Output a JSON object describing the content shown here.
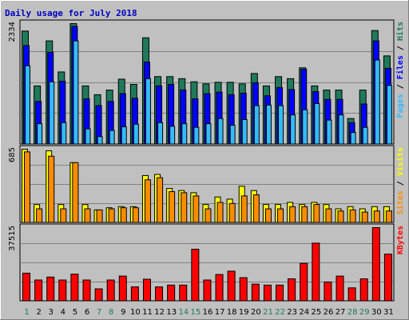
{
  "chart_data": [
    {
      "type": "bar",
      "title": "Daily usage for July 2018",
      "categories": [
        "1",
        "2",
        "3",
        "4",
        "5",
        "6",
        "7",
        "8",
        "9",
        "10",
        "11",
        "12",
        "13",
        "14",
        "15",
        "16",
        "17",
        "18",
        "19",
        "20",
        "21",
        "22",
        "23",
        "24",
        "25",
        "26",
        "27",
        "28",
        "29",
        "30",
        "31"
      ],
      "weekend_days": [
        "1",
        "7",
        "8",
        "14",
        "15",
        "21",
        "22",
        "28",
        "29"
      ],
      "ymax_label": "2334",
      "ylim": [
        0,
        2334
      ],
      "series": [
        {
          "name": "Hits",
          "color": "#1f7a5a",
          "values": [
            2190,
            1130,
            2000,
            1400,
            2334,
            1130,
            960,
            1050,
            1260,
            1160,
            2060,
            1310,
            1310,
            1270,
            1210,
            1170,
            1200,
            1200,
            1170,
            1370,
            1130,
            1310,
            1270,
            1480,
            1130,
            1050,
            1050,
            500,
            1050,
            2200,
            1710
          ]
        },
        {
          "name": "Files",
          "color": "#0000ff",
          "values": [
            1910,
            830,
            1780,
            1220,
            2280,
            880,
            750,
            830,
            980,
            890,
            1590,
            1130,
            1160,
            1050,
            880,
            980,
            1010,
            960,
            990,
            1190,
            940,
            1100,
            1060,
            1450,
            1020,
            870,
            870,
            420,
            780,
            2000,
            1470
          ]
        },
        {
          "name": "Pages",
          "color": "#33bbff",
          "values": [
            1520,
            400,
            1210,
            420,
            2000,
            300,
            150,
            270,
            340,
            390,
            1270,
            420,
            350,
            400,
            330,
            400,
            500,
            370,
            480,
            750,
            760,
            750,
            570,
            670,
            790,
            470,
            570,
            230,
            330,
            1630,
            1140
          ]
        }
      ],
      "side_labels": [
        "Pages",
        "/",
        "Files",
        "/",
        "Hits"
      ]
    },
    {
      "type": "bar",
      "categories": [
        "1",
        "2",
        "3",
        "4",
        "5",
        "6",
        "7",
        "8",
        "9",
        "10",
        "11",
        "12",
        "13",
        "14",
        "15",
        "16",
        "17",
        "18",
        "19",
        "20",
        "21",
        "22",
        "23",
        "24",
        "25",
        "26",
        "27",
        "28",
        "29",
        "30",
        "31"
      ],
      "ymax_label": "685",
      "ylim": [
        0,
        685
      ],
      "series": [
        {
          "name": "Visits",
          "color": "#ffff00",
          "values": [
            685,
            170,
            670,
            170,
            560,
            170,
            120,
            140,
            150,
            150,
            440,
            450,
            320,
            300,
            280,
            170,
            240,
            220,
            340,
            300,
            170,
            170,
            190,
            170,
            190,
            170,
            130,
            150,
            130,
            150,
            150
          ]
        },
        {
          "name": "Sites",
          "color": "#ff8c00",
          "values": [
            660,
            130,
            620,
            130,
            560,
            130,
            120,
            130,
            140,
            140,
            400,
            420,
            290,
            280,
            250,
            130,
            190,
            180,
            250,
            260,
            130,
            130,
            150,
            150,
            170,
            130,
            110,
            120,
            100,
            110,
            110
          ]
        }
      ],
      "side_labels": [
        "Sites",
        "/",
        "Visits"
      ]
    },
    {
      "type": "bar",
      "categories": [
        "1",
        "2",
        "3",
        "4",
        "5",
        "6",
        "7",
        "8",
        "9",
        "10",
        "11",
        "12",
        "13",
        "14",
        "15",
        "16",
        "17",
        "18",
        "19",
        "20",
        "21",
        "22",
        "23",
        "24",
        "25",
        "26",
        "27",
        "28",
        "29",
        "30",
        "31"
      ],
      "ymax_label": "37515",
      "ylim": [
        0,
        37515
      ],
      "series": [
        {
          "name": "KBytes",
          "color": "#ff0000",
          "values": [
            14300,
            10800,
            12300,
            10800,
            13800,
            10800,
            6300,
            10800,
            12800,
            7300,
            11200,
            7300,
            8200,
            8200,
            26500,
            10800,
            13600,
            15300,
            12000,
            8700,
            8200,
            8200,
            11400,
            19300,
            29600,
            9800,
            12800,
            6800,
            11400,
            37515,
            24000
          ]
        }
      ],
      "side_labels": [
        "KBytes"
      ]
    }
  ],
  "side_colors": {
    "Pages": "#33bbff",
    "Files": "#0000ff",
    "Hits": "#1f7a5a",
    "Sites": "#ff8c00",
    "Visits": "#ffff00",
    "KBytes": "#ff0000",
    "/": "#000000"
  },
  "tick_colors": {
    "weekday": "#000000",
    "weekend": "#1f7a5a"
  }
}
